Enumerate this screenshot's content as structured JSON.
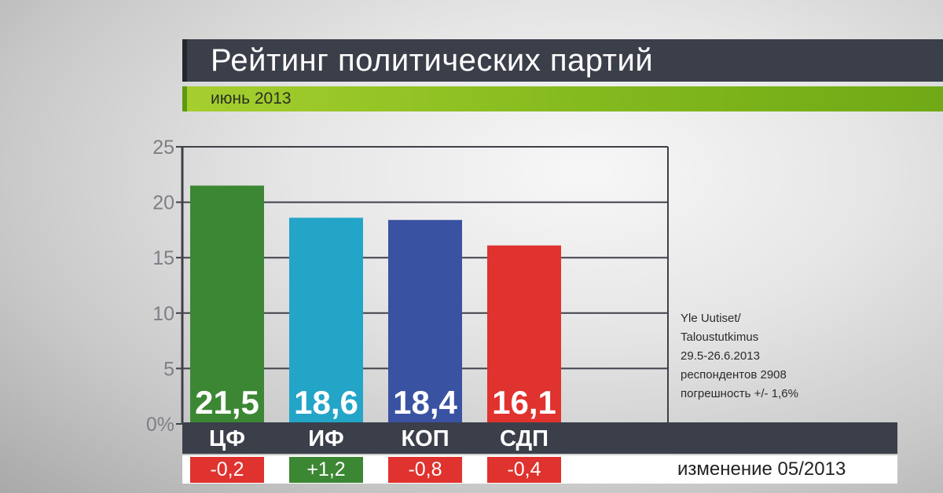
{
  "header": {
    "title": "Рейтинг политических партий",
    "subtitle": "июнь 2013"
  },
  "chart_data": {
    "type": "bar",
    "categories": [
      "ЦФ",
      "ИФ",
      "КОП",
      "СДП"
    ],
    "values": [
      21.5,
      18.6,
      18.4,
      16.1
    ],
    "value_labels": [
      "21,5",
      "18,6",
      "18,4",
      "16,1"
    ],
    "colors": [
      "#3c8733",
      "#23a5c8",
      "#3a52a2",
      "#e0322e"
    ],
    "ylim": [
      0,
      25
    ],
    "y_ticks": [
      0,
      5,
      10,
      15,
      20,
      25
    ],
    "y_tick_labels": [
      "0%",
      "5",
      "10",
      "15",
      "20",
      "25"
    ],
    "grid": true,
    "changes": {
      "label": "изменение 05/2013",
      "values": [
        "-0,2",
        "+1,2",
        "-0,8",
        "-0,4"
      ],
      "colors": [
        "#e0322e",
        "#3c8733",
        "#e0322e",
        "#e0322e"
      ]
    }
  },
  "source": {
    "lines": [
      "Yle Uutiset/",
      "Taloustutkimus",
      "29.5-26.6.2013",
      "респондентов 2908",
      "погрешность +/- 1,6%"
    ]
  }
}
